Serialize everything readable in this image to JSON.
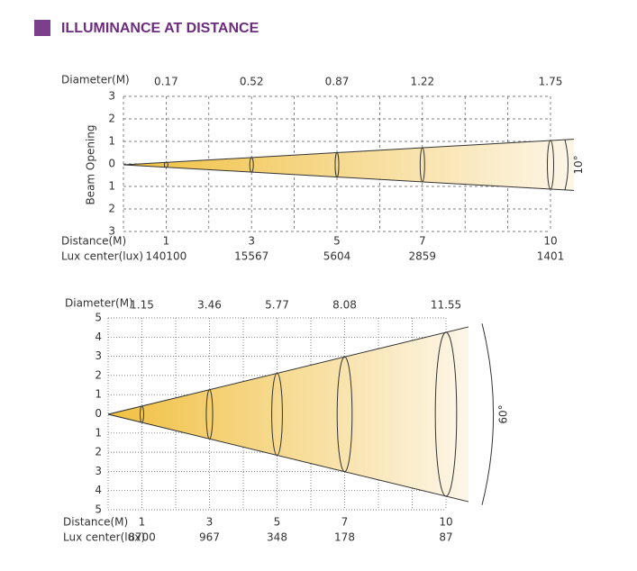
{
  "header": {
    "title": "ILLUMINANCE AT DISTANCE"
  },
  "diagrams": [
    {
      "diameter_label": "Diameter(M)",
      "diameters": [
        "0.17",
        "0.52",
        "0.87",
        "1.22",
        "1.75"
      ],
      "axis_label": "Beam Opening",
      "y_labels": [
        "3",
        "2",
        "1",
        "0",
        "1",
        "2",
        "3"
      ],
      "distance_label": "Distance(M)",
      "distances": [
        "1",
        "3",
        "5",
        "7",
        "10"
      ],
      "lux_label": "Lux center(lux)",
      "lux": [
        "140100",
        "15567",
        "5604",
        "2859",
        "1401"
      ],
      "angle": "10°"
    },
    {
      "diameter_label": "Diameter(M)",
      "diameters": [
        "1.15",
        "3.46",
        "5.77",
        "8.08",
        "11.55"
      ],
      "y_labels": [
        "5",
        "4",
        "3",
        "2",
        "1",
        "0",
        "1",
        "2",
        "3",
        "4",
        "5"
      ],
      "distance_label": "Distance(M)",
      "distances": [
        "1",
        "3",
        "5",
        "7",
        "10"
      ],
      "lux_label": "Lux center(lux)",
      "lux": [
        "8700",
        "967",
        "348",
        "178",
        "87"
      ],
      "angle": "60°"
    }
  ]
}
